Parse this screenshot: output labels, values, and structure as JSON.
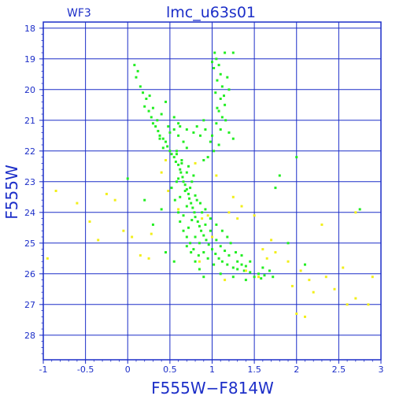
{
  "colors": {
    "frame": "#1c2ec8",
    "grid": "#1c2ec8",
    "main_points": "#22ee22",
    "faint_points": "#f2ef1a",
    "text": "#1c2ec8",
    "background": "#ffffff"
  },
  "chart_data": {
    "type": "scatter",
    "title": "lmc_u63s01",
    "corner_label": "WF3",
    "xlabel": "F555W−F814W",
    "ylabel": "F555W",
    "xlim": [
      -1,
      3
    ],
    "ylim": [
      28.8,
      17.8
    ],
    "y_inverted": true,
    "grid": true,
    "x_ticks": [
      {
        "value": -1,
        "label": "-1"
      },
      {
        "value": -0.5,
        "label": "-0.5"
      },
      {
        "value": 0,
        "label": "0"
      },
      {
        "value": 0.5,
        "label": "0.5"
      },
      {
        "value": 1,
        "label": "1"
      },
      {
        "value": 1.5,
        "label": "1.5"
      },
      {
        "value": 2,
        "label": "2"
      },
      {
        "value": 2.5,
        "label": "2.5"
      },
      {
        "value": 3,
        "label": "3"
      }
    ],
    "y_ticks": [
      {
        "value": 18,
        "label": "18"
      },
      {
        "value": 19,
        "label": "19"
      },
      {
        "value": 20,
        "label": "20"
      },
      {
        "value": 21,
        "label": "21"
      },
      {
        "value": 22,
        "label": "22"
      },
      {
        "value": 23,
        "label": "23"
      },
      {
        "value": 24,
        "label": "24"
      },
      {
        "value": 25,
        "label": "25"
      },
      {
        "value": 26,
        "label": "26"
      },
      {
        "value": 27,
        "label": "27"
      },
      {
        "value": 28,
        "label": "28"
      }
    ],
    "series": [
      {
        "color": "#22ee22",
        "points": [
          [
            0.08,
            19.2
          ],
          [
            0.12,
            19.4
          ],
          [
            0.1,
            19.6
          ],
          [
            0.15,
            19.9
          ],
          [
            0.18,
            20.1
          ],
          [
            0.22,
            20.3
          ],
          [
            0.2,
            20.55
          ],
          [
            0.25,
            20.7
          ],
          [
            0.28,
            20.9
          ],
          [
            0.3,
            21.1
          ],
          [
            0.33,
            21.2
          ],
          [
            0.36,
            21.35
          ],
          [
            0.38,
            21.5
          ],
          [
            0.42,
            21.6
          ],
          [
            0.45,
            21.7
          ],
          [
            0.47,
            21.85
          ],
          [
            0.5,
            22.0
          ],
          [
            0.52,
            22.1
          ],
          [
            0.55,
            22.2
          ],
          [
            0.57,
            22.35
          ],
          [
            0.6,
            22.45
          ],
          [
            0.62,
            22.6
          ],
          [
            0.63,
            22.7
          ],
          [
            0.65,
            22.85
          ],
          [
            0.66,
            23.0
          ],
          [
            0.68,
            23.1
          ],
          [
            0.7,
            23.25
          ],
          [
            0.72,
            23.4
          ],
          [
            0.73,
            23.55
          ],
          [
            0.75,
            23.7
          ],
          [
            0.77,
            23.85
          ],
          [
            0.79,
            24.0
          ],
          [
            0.8,
            24.15
          ],
          [
            0.83,
            24.3
          ],
          [
            0.85,
            24.45
          ],
          [
            0.87,
            24.6
          ],
          [
            0.9,
            24.75
          ],
          [
            0.93,
            24.9
          ],
          [
            0.96,
            25.05
          ],
          [
            1.0,
            25.2
          ],
          [
            1.04,
            25.35
          ],
          [
            1.08,
            25.5
          ],
          [
            1.12,
            25.6
          ],
          [
            1.18,
            25.7
          ],
          [
            1.25,
            25.8
          ],
          [
            1.3,
            25.85
          ],
          [
            1.38,
            25.9
          ],
          [
            1.45,
            25.95
          ],
          [
            1.55,
            26.0
          ],
          [
            1.62,
            26.05
          ],
          [
            0.55,
            21.3
          ],
          [
            0.6,
            21.5
          ],
          [
            0.5,
            21.4
          ],
          [
            0.66,
            21.7
          ],
          [
            0.7,
            21.9
          ],
          [
            0.58,
            22.0
          ],
          [
            0.64,
            22.3
          ],
          [
            0.72,
            22.5
          ],
          [
            0.78,
            22.8
          ],
          [
            0.6,
            22.9
          ],
          [
            0.68,
            23.3
          ],
          [
            0.74,
            23.2
          ],
          [
            0.82,
            23.6
          ],
          [
            0.62,
            23.5
          ],
          [
            0.7,
            23.8
          ],
          [
            0.88,
            24.0
          ],
          [
            0.76,
            24.25
          ],
          [
            0.66,
            24.1
          ],
          [
            0.92,
            24.4
          ],
          [
            0.98,
            24.6
          ],
          [
            0.72,
            24.5
          ],
          [
            0.8,
            24.8
          ],
          [
            1.05,
            24.9
          ],
          [
            0.85,
            25.0
          ],
          [
            1.1,
            25.1
          ],
          [
            0.9,
            25.3
          ],
          [
            1.15,
            25.25
          ],
          [
            0.95,
            25.5
          ],
          [
            1.2,
            25.4
          ],
          [
            1.02,
            25.7
          ],
          [
            1.3,
            25.6
          ],
          [
            0.8,
            25.6
          ],
          [
            1.35,
            25.7
          ],
          [
            0.75,
            25.3
          ],
          [
            1.4,
            25.75
          ],
          [
            0.7,
            25.1
          ],
          [
            1.5,
            26.1
          ],
          [
            1.1,
            26.0
          ],
          [
            1.25,
            26.1
          ],
          [
            0.85,
            25.85
          ],
          [
            1.03,
            18.8
          ],
          [
            1.05,
            19.0
          ],
          [
            1.02,
            19.3
          ],
          [
            1.08,
            19.2
          ],
          [
            1.1,
            19.5
          ],
          [
            1.06,
            19.7
          ],
          [
            1.12,
            19.9
          ],
          [
            1.04,
            20.1
          ],
          [
            1.1,
            20.3
          ],
          [
            1.15,
            20.5
          ],
          [
            1.08,
            20.7
          ],
          [
            1.12,
            20.9
          ],
          [
            1.05,
            21.1
          ],
          [
            1.1,
            21.3
          ],
          [
            1.0,
            21.5
          ],
          [
            0.98,
            21.7
          ],
          [
            1.18,
            19.6
          ],
          [
            1.2,
            20.0
          ],
          [
            1.14,
            20.2
          ],
          [
            1.06,
            20.6
          ],
          [
            1.15,
            18.8
          ],
          [
            1.25,
            18.8
          ],
          [
            1.0,
            19.1
          ],
          [
            1.16,
            21.0
          ],
          [
            1.2,
            21.4
          ],
          [
            1.25,
            21.6
          ],
          [
            1.08,
            21.8
          ],
          [
            1.02,
            22.0
          ],
          [
            0.95,
            22.2
          ],
          [
            0.9,
            22.3
          ],
          [
            0.45,
            20.4
          ],
          [
            0.4,
            20.8
          ],
          [
            0.35,
            21.0
          ],
          [
            0.48,
            21.2
          ],
          [
            0.3,
            20.6
          ],
          [
            0.26,
            20.2
          ],
          [
            0.55,
            20.9
          ],
          [
            0.6,
            21.1
          ],
          [
            0.42,
            21.9
          ],
          [
            0.38,
            21.6
          ],
          [
            0.58,
            23.0
          ],
          [
            0.52,
            23.2
          ],
          [
            0.56,
            23.6
          ],
          [
            0.6,
            24.0
          ],
          [
            0.62,
            24.3
          ],
          [
            0.66,
            24.6
          ],
          [
            0.7,
            24.8
          ],
          [
            0.74,
            25.0
          ],
          [
            0.78,
            25.2
          ],
          [
            0.84,
            25.4
          ],
          [
            1.6,
            25.8
          ],
          [
            1.68,
            25.9
          ],
          [
            1.72,
            26.1
          ],
          [
            1.58,
            26.15
          ],
          [
            1.4,
            26.2
          ],
          [
            1.45,
            25.6
          ],
          [
            1.35,
            25.4
          ],
          [
            1.28,
            25.3
          ],
          [
            1.22,
            25.0
          ],
          [
            1.18,
            24.8
          ],
          [
            1.12,
            24.6
          ],
          [
            1.05,
            24.4
          ],
          [
            0.98,
            24.2
          ],
          [
            0.92,
            23.9
          ],
          [
            0.86,
            23.7
          ],
          [
            0.8,
            23.45
          ],
          [
            0.76,
            23.0
          ],
          [
            0.7,
            22.7
          ],
          [
            0.64,
            22.4
          ],
          [
            0.58,
            22.1
          ],
          [
            0.9,
            21.0
          ],
          [
            0.82,
            21.2
          ],
          [
            0.86,
            21.5
          ],
          [
            0.92,
            21.3
          ],
          [
            0.78,
            21.4
          ],
          [
            0.7,
            21.3
          ],
          [
            0.62,
            21.2
          ],
          [
            1.8,
            22.8
          ],
          [
            2.0,
            22.2
          ],
          [
            2.75,
            23.9
          ],
          [
            0.4,
            23.9
          ],
          [
            0.0,
            22.9
          ],
          [
            0.2,
            23.6
          ],
          [
            0.45,
            25.3
          ],
          [
            0.55,
            25.6
          ],
          [
            1.9,
            25.0
          ],
          [
            2.1,
            25.7
          ],
          [
            1.75,
            23.2
          ],
          [
            0.3,
            24.4
          ],
          [
            0.9,
            26.1
          ]
        ]
      },
      {
        "color": "#f2ef1a",
        "points": [
          [
            -0.85,
            23.3
          ],
          [
            -0.6,
            23.7
          ],
          [
            -0.45,
            24.3
          ],
          [
            -0.35,
            24.9
          ],
          [
            -0.25,
            23.4
          ],
          [
            -0.15,
            23.6
          ],
          [
            -0.05,
            24.6
          ],
          [
            0.05,
            24.8
          ],
          [
            0.15,
            25.4
          ],
          [
            0.28,
            24.7
          ],
          [
            0.4,
            22.7
          ],
          [
            0.45,
            22.3
          ],
          [
            0.48,
            23.3
          ],
          [
            0.6,
            23.9
          ],
          [
            0.88,
            24.2
          ],
          [
            0.95,
            24.1
          ],
          [
            1.2,
            24.0
          ],
          [
            1.3,
            24.2
          ],
          [
            1.35,
            23.8
          ],
          [
            1.5,
            24.1
          ],
          [
            1.6,
            25.2
          ],
          [
            1.65,
            25.5
          ],
          [
            1.75,
            25.3
          ],
          [
            1.9,
            25.6
          ],
          [
            1.95,
            26.4
          ],
          [
            2.05,
            25.9
          ],
          [
            2.15,
            26.2
          ],
          [
            2.2,
            26.6
          ],
          [
            2.35,
            26.1
          ],
          [
            2.45,
            26.5
          ],
          [
            2.6,
            27.0
          ],
          [
            2.7,
            26.8
          ],
          [
            2.85,
            27.0
          ],
          [
            2.55,
            25.8
          ],
          [
            2.1,
            27.4
          ],
          [
            2.0,
            27.3
          ],
          [
            1.25,
            23.5
          ],
          [
            1.7,
            24.9
          ],
          [
            2.3,
            24.4
          ],
          [
            2.9,
            26.1
          ],
          [
            1.0,
            24.8
          ],
          [
            0.85,
            25.6
          ],
          [
            1.05,
            22.8
          ],
          [
            0.8,
            22.4
          ],
          [
            1.15,
            26.2
          ],
          [
            1.4,
            25.9
          ],
          [
            1.55,
            26.1
          ],
          [
            2.7,
            24.0
          ],
          [
            -0.95,
            25.5
          ],
          [
            0.25,
            25.5
          ]
        ]
      }
    ]
  }
}
